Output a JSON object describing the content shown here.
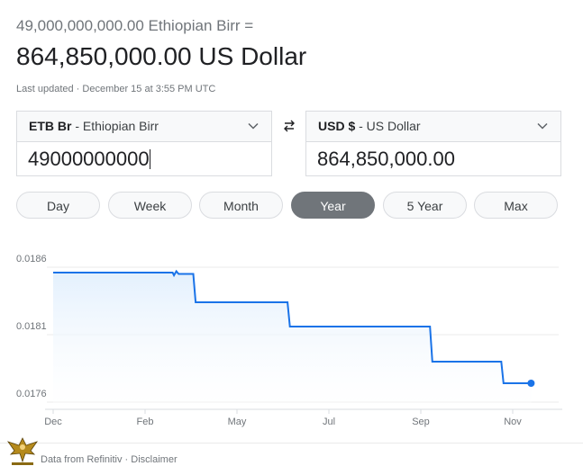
{
  "header": {
    "from_amount": "49,000,000,000.00 Ethiopian Birr =",
    "to_amount": "864,850,000.00 US Dollar",
    "last_updated": "Last updated · December 15 at 3:55 PM UTC"
  },
  "from_currency": {
    "code": "ETB Br",
    "name": " - Ethiopian Birr",
    "value": "49000000000"
  },
  "to_currency": {
    "code": "USD $",
    "name": " - US Dollar",
    "value": "864,850,000.00"
  },
  "ranges": [
    {
      "label": "Day",
      "active": false
    },
    {
      "label": "Week",
      "active": false
    },
    {
      "label": "Month",
      "active": false
    },
    {
      "label": "Year",
      "active": true
    },
    {
      "label": "5 Year",
      "active": false
    },
    {
      "label": "Max",
      "active": false
    }
  ],
  "colors": {
    "line": "#1a73e8",
    "fill_top": "#e3f0fd",
    "active_range": "#70757a",
    "gridline": "#ebebeb"
  },
  "chart_data": {
    "type": "area",
    "y_ticks": [
      "0.0186",
      "0.0181",
      "0.0176"
    ],
    "ylim": [
      0.0175,
      0.0187
    ],
    "x_ticks": [
      {
        "label": "Dec",
        "t": 0
      },
      {
        "label": "Feb",
        "t": 2
      },
      {
        "label": "May",
        "t": 4
      },
      {
        "label": "Jul",
        "t": 6
      },
      {
        "label": "Sep",
        "t": 8
      },
      {
        "label": "Nov",
        "t": 10
      }
    ],
    "points": [
      [
        0.0,
        0.01856
      ],
      [
        2.6,
        0.01856
      ],
      [
        2.63,
        0.01854
      ],
      [
        2.68,
        0.01857
      ],
      [
        2.73,
        0.01855
      ],
      [
        2.8,
        0.01855
      ],
      [
        3.05,
        0.01855
      ],
      [
        3.1,
        0.01834
      ],
      [
        5.1,
        0.01834
      ],
      [
        5.15,
        0.01816
      ],
      [
        8.2,
        0.01816
      ],
      [
        8.25,
        0.0179
      ],
      [
        9.75,
        0.0179
      ],
      [
        9.8,
        0.01774
      ],
      [
        10.4,
        0.01774
      ]
    ],
    "grid": true
  },
  "footer": {
    "source": "Data from Refinitiv",
    "separator": " · ",
    "disclaimer": "Disclaimer"
  }
}
